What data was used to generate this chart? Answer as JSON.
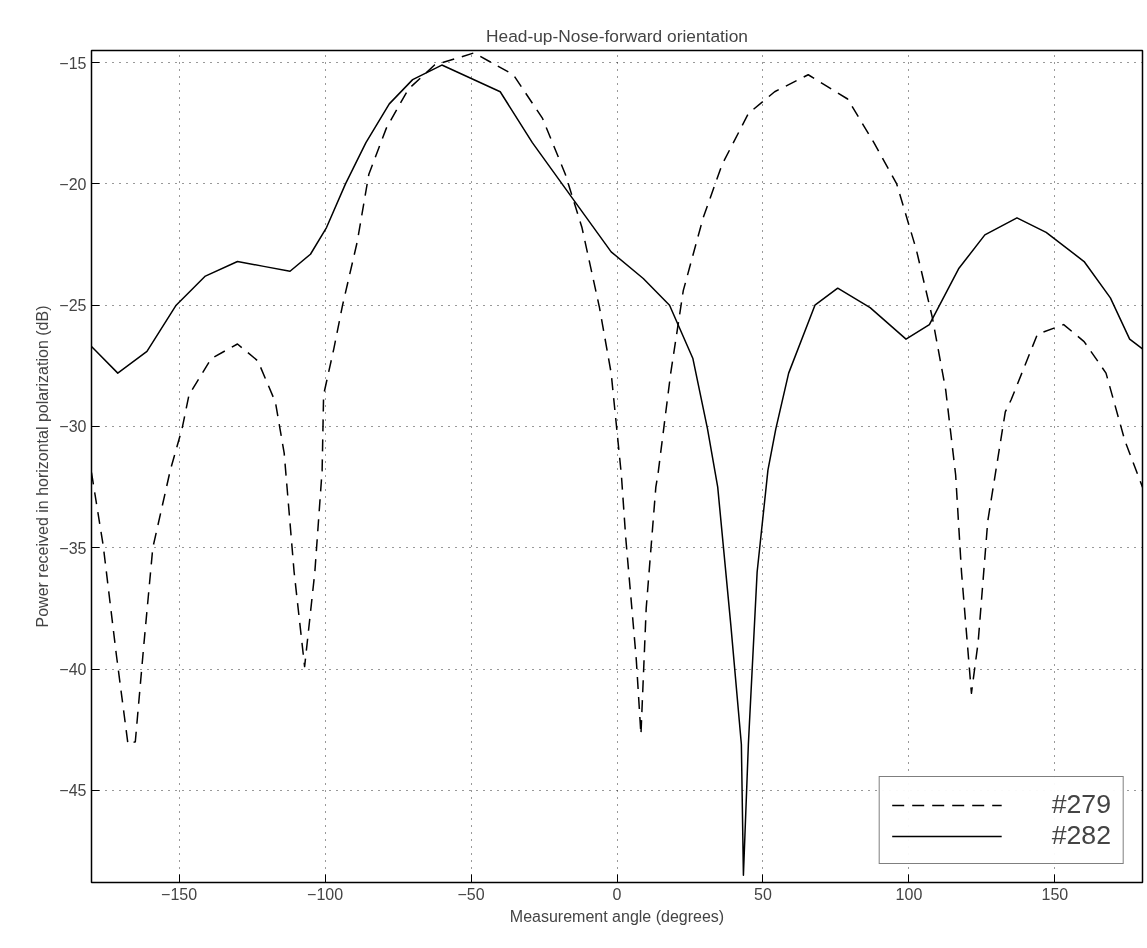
{
  "chart_data": {
    "type": "line",
    "title": "Head-up-Nose-forward orientation",
    "xlabel": "Measurement angle (degrees)",
    "ylabel": "Power received in horizontal polarization (dB)",
    "xlim": [
      -180,
      180
    ],
    "ylim": [
      -48.8,
      -14.5
    ],
    "xticks": [
      -150,
      -100,
      -50,
      0,
      50,
      100,
      150
    ],
    "yticks": [
      -45,
      -40,
      -35,
      -30,
      -25,
      -20,
      -15
    ],
    "grid": true,
    "legend": "bottom right",
    "marker": "none",
    "series": [
      {
        "name": "#279",
        "color": "#000000",
        "line_style": "dashed",
        "x": [
          -180,
          -176,
          -171.5,
          -167.5,
          -165,
          -162,
          -159,
          -153,
          -149,
          -146.6,
          -139,
          -130,
          -123,
          -117,
          -114,
          -110.6,
          -107,
          -103.5,
          -101,
          -100.5,
          -97,
          -94,
          -89,
          -85,
          -79,
          -71.5,
          -62.5,
          -49,
          -35.5,
          -25.5,
          -17.7,
          -12,
          -6,
          -2,
          1.5,
          3,
          6.6,
          8.2,
          10,
          13.3,
          14,
          18.4,
          22.7,
          29.5,
          36,
          45,
          54,
          65.5,
          79,
          88,
          95.8,
          102.5,
          108,
          112.6,
          116,
          118,
          121.4,
          123.7,
          127,
          133,
          135,
          144,
          153,
          160,
          167.5,
          174,
          180
        ],
        "values": [
          -31.9,
          -34.9,
          -39.4,
          -43.1,
          -43.0,
          -38.9,
          -35.0,
          -31.8,
          -30.1,
          -28.7,
          -27.2,
          -26.6,
          -27.3,
          -29.0,
          -31.1,
          -36.0,
          -39.9,
          -36.0,
          -31.8,
          -28.7,
          -26.8,
          -25.0,
          -22.4,
          -19.6,
          -17.7,
          -16.1,
          -15.1,
          -14.6,
          -15.5,
          -17.3,
          -19.6,
          -21.8,
          -25.1,
          -27.8,
          -32.0,
          -34.6,
          -39.6,
          -42.7,
          -37.5,
          -32.5,
          -32.0,
          -27.8,
          -24.4,
          -21.4,
          -19.2,
          -17.1,
          -16.2,
          -15.5,
          -16.5,
          -18.3,
          -20.0,
          -22.7,
          -25.5,
          -28.5,
          -32.0,
          -36.0,
          -41.0,
          -38.9,
          -33.9,
          -29.4,
          -28.9,
          -26.2,
          -25.8,
          -26.5,
          -27.8,
          -30.6,
          -32.5
        ]
      },
      {
        "name": "#282",
        "color": "#000000",
        "line_style": "solid",
        "x": [
          -180,
          -171,
          -161,
          -151,
          -141,
          -130,
          -121,
          -112,
          -105,
          -99.5,
          -93,
          -86,
          -78,
          -70,
          -60,
          -40,
          -29,
          -14,
          -2,
          9,
          18,
          26,
          31,
          34.5,
          39,
          42.6,
          43.3,
          45,
          48,
          51.7,
          54.4,
          58.8,
          67.8,
          75.6,
          86.7,
          99,
          107,
          117,
          126,
          137,
          147,
          160,
          169,
          175.6,
          180
        ],
        "values": [
          -26.7,
          -27.8,
          -26.9,
          -25.0,
          -23.8,
          -23.2,
          -23.4,
          -23.6,
          -22.9,
          -21.8,
          -20.0,
          -18.3,
          -16.7,
          -15.7,
          -15.1,
          -16.2,
          -18.3,
          -20.8,
          -22.8,
          -23.9,
          -25.0,
          -27.2,
          -30.1,
          -32.5,
          -38.2,
          -43.1,
          -48.5,
          -43.1,
          -36.0,
          -31.8,
          -30.1,
          -27.8,
          -25.0,
          -24.3,
          -25.1,
          -26.4,
          -25.8,
          -23.5,
          -22.1,
          -21.4,
          -22.0,
          -23.2,
          -24.7,
          -26.4,
          -26.8
        ]
      }
    ]
  }
}
